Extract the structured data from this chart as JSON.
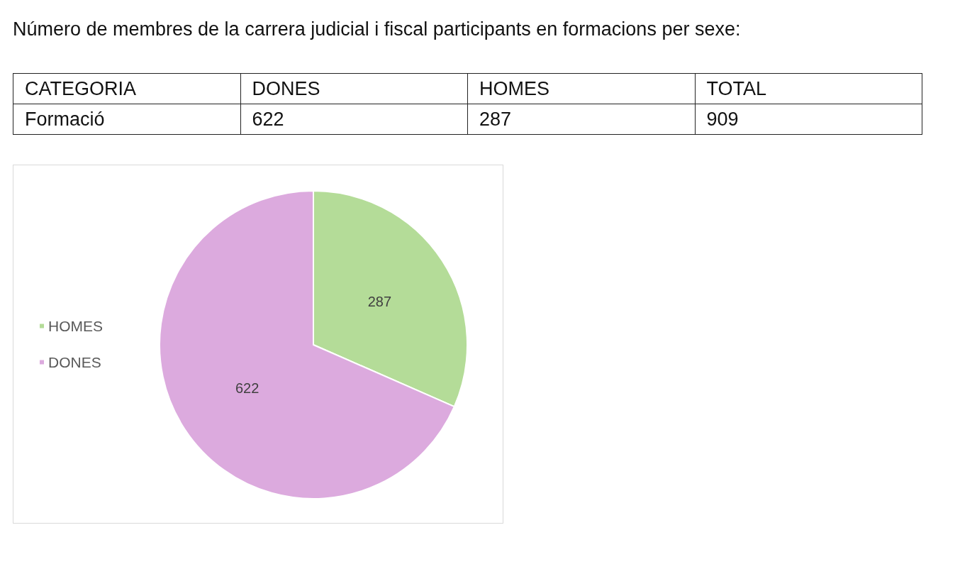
{
  "chart_data": {
    "type": "pie",
    "title": "Número de membres de la carrera judicial i fiscal participants en formacions per sexe:",
    "categories": [
      "HOMES",
      "DONES"
    ],
    "values": [
      287,
      622
    ],
    "colors": [
      "#b4dc98",
      "#dcaade"
    ],
    "data_labels": true,
    "legend": "left",
    "annotations": [
      "CATEGORIA",
      "DONES",
      "HOMES",
      "TOTAL",
      "Formació",
      "622",
      "287",
      "909"
    ]
  }
}
